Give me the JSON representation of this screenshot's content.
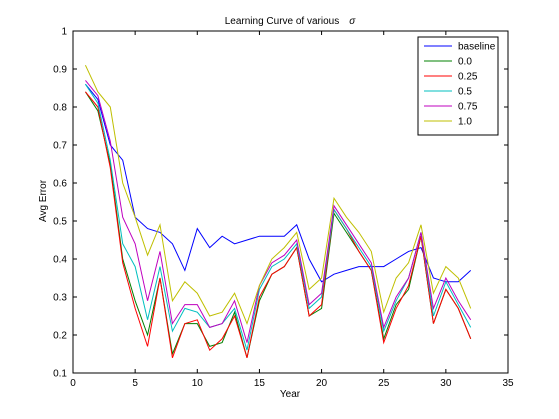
{
  "chart_data": {
    "type": "line",
    "title": "Learning Curve of various",
    "title_symbol": "σ",
    "xlabel": "Year",
    "ylabel": "Avg Error",
    "xlim": [
      0,
      35
    ],
    "ylim": [
      0.1,
      1.0
    ],
    "xticks": [
      "0",
      "5",
      "10",
      "15",
      "20",
      "25",
      "30",
      "35"
    ],
    "yticks": [
      "0.1",
      "0.2",
      "0.3",
      "0.4",
      "0.5",
      "0.6",
      "0.7",
      "0.8",
      "0.9",
      "1"
    ],
    "grid": false,
    "legend_position": "top-right",
    "x": [
      1,
      2,
      3,
      4,
      5,
      6,
      7,
      8,
      9,
      10,
      11,
      12,
      13,
      14,
      15,
      16,
      17,
      18,
      19,
      20,
      21,
      22,
      23,
      24,
      25,
      26,
      27,
      28,
      29,
      30,
      31,
      32
    ],
    "series": [
      {
        "name": "baseline",
        "color": "#0000ff",
        "values": [
          0.86,
          0.82,
          0.7,
          0.66,
          0.51,
          0.48,
          0.47,
          0.44,
          0.37,
          0.48,
          0.43,
          0.46,
          0.44,
          0.45,
          0.46,
          0.46,
          0.46,
          0.49,
          0.4,
          0.34,
          0.36,
          0.37,
          0.38,
          0.38,
          0.38,
          0.4,
          0.42,
          0.43,
          0.35,
          0.34,
          0.34,
          0.37
        ]
      },
      {
        "name": "0.0",
        "color": "#008000",
        "values": [
          0.84,
          0.79,
          0.65,
          0.4,
          0.29,
          0.2,
          0.35,
          0.15,
          0.23,
          0.23,
          0.17,
          0.18,
          0.26,
          0.14,
          0.29,
          0.36,
          0.38,
          0.43,
          0.25,
          0.27,
          0.52,
          0.47,
          0.42,
          0.37,
          0.19,
          0.28,
          0.32,
          0.46,
          0.23,
          0.32,
          0.27,
          0.19
        ]
      },
      {
        "name": "0.25",
        "color": "#ff0000",
        "values": [
          0.84,
          0.8,
          0.64,
          0.39,
          0.27,
          0.17,
          0.35,
          0.14,
          0.23,
          0.24,
          0.16,
          0.19,
          0.25,
          0.14,
          0.3,
          0.36,
          0.38,
          0.43,
          0.25,
          0.28,
          0.53,
          0.48,
          0.42,
          0.37,
          0.18,
          0.27,
          0.33,
          0.46,
          0.23,
          0.32,
          0.27,
          0.19
        ]
      },
      {
        "name": "0.5",
        "color": "#00bfbf",
        "values": [
          0.86,
          0.81,
          0.66,
          0.44,
          0.38,
          0.24,
          0.38,
          0.21,
          0.27,
          0.26,
          0.22,
          0.23,
          0.27,
          0.16,
          0.32,
          0.38,
          0.4,
          0.44,
          0.27,
          0.3,
          0.53,
          0.48,
          0.43,
          0.38,
          0.21,
          0.29,
          0.35,
          0.47,
          0.25,
          0.34,
          0.28,
          0.22
        ]
      },
      {
        "name": "0.75",
        "color": "#bf00bf",
        "values": [
          0.87,
          0.83,
          0.71,
          0.51,
          0.44,
          0.29,
          0.42,
          0.23,
          0.28,
          0.28,
          0.22,
          0.23,
          0.29,
          0.18,
          0.33,
          0.39,
          0.41,
          0.45,
          0.28,
          0.31,
          0.54,
          0.49,
          0.44,
          0.39,
          0.22,
          0.3,
          0.35,
          0.47,
          0.27,
          0.35,
          0.29,
          0.24
        ]
      },
      {
        "name": "1.0",
        "color": "#bfbf00",
        "values": [
          0.91,
          0.84,
          0.8,
          0.6,
          0.51,
          0.41,
          0.49,
          0.29,
          0.34,
          0.31,
          0.25,
          0.26,
          0.31,
          0.23,
          0.33,
          0.4,
          0.43,
          0.47,
          0.32,
          0.35,
          0.56,
          0.51,
          0.47,
          0.42,
          0.26,
          0.35,
          0.39,
          0.49,
          0.31,
          0.38,
          0.35,
          0.27
        ]
      }
    ]
  }
}
